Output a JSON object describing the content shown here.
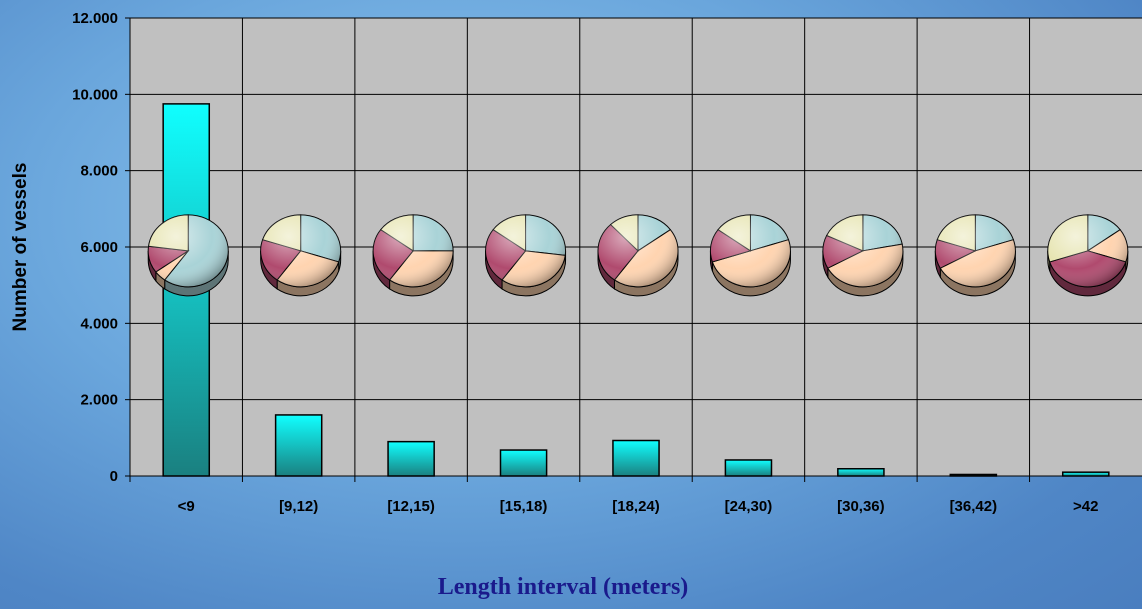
{
  "chart_data": {
    "type": "bar",
    "title": "",
    "xlabel": "Length interval (meters)",
    "ylabel": "Number of vessels",
    "ylim": [
      0,
      12000
    ],
    "yticks": [
      0,
      2000,
      4000,
      6000,
      8000,
      10000,
      12000
    ],
    "ytick_labels": [
      "0",
      "2.000",
      "4.000",
      "6.000",
      "8.000",
      "10.000",
      "12.000"
    ],
    "grid": true,
    "categories": [
      "<9",
      "[9,12)",
      "[12,15)",
      "[15,18)",
      "[18,24)",
      "[24,30)",
      "[30,36)",
      "[36,42)",
      ">42"
    ],
    "values": [
      9750,
      1600,
      900,
      680,
      930,
      420,
      190,
      40,
      100
    ],
    "bar_color": "#00e0e0",
    "plot_background": "#c0c0c0",
    "pie_charts": {
      "description_units": "share of vessels per category slice",
      "slice_colors": [
        "#a9d3d7",
        "#ffd4b0",
        "#b04a6e",
        "#e6e4b0"
      ],
      "shares": [
        [
          0.6,
          0.05,
          0.12,
          0.23
        ],
        [
          0.3,
          0.3,
          0.2,
          0.2
        ],
        [
          0.25,
          0.35,
          0.25,
          0.15
        ],
        [
          0.27,
          0.33,
          0.25,
          0.15
        ],
        [
          0.15,
          0.45,
          0.28,
          0.12
        ],
        [
          0.2,
          0.5,
          0.15,
          0.15
        ],
        [
          0.22,
          0.45,
          0.15,
          0.18
        ],
        [
          0.2,
          0.47,
          0.13,
          0.2
        ],
        [
          0.15,
          0.15,
          0.4,
          0.3
        ]
      ]
    }
  }
}
